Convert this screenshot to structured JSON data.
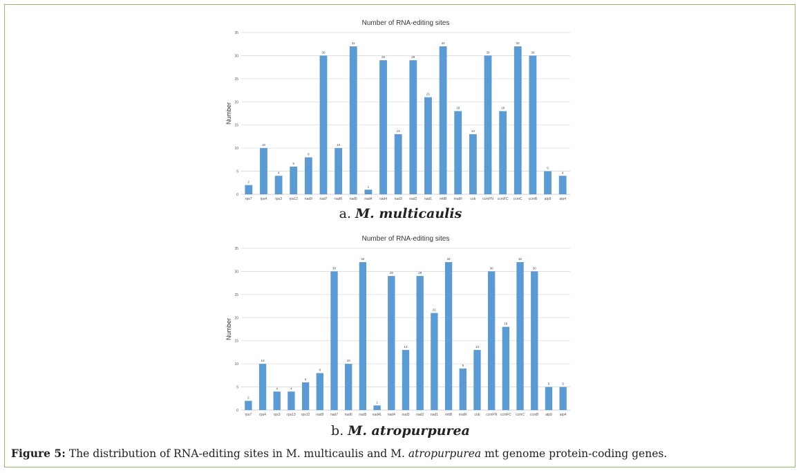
{
  "chart_data": [
    {
      "type": "bar",
      "title": "Number of RNA-editing sites",
      "xlabel": "",
      "ylabel": "Number",
      "ylim": [
        0,
        35
      ],
      "yticks": [
        0,
        5,
        10,
        15,
        20,
        25,
        30,
        35
      ],
      "grid": true,
      "color": "#5b9bd5",
      "categories": [
        "rps7",
        "rps4",
        "rps3",
        "rps12",
        "nad9",
        "nad7",
        "nad6",
        "nad5",
        "nad4",
        "nad4",
        "nad3",
        "nad2",
        "nad1",
        "mttB",
        "matR",
        "cob",
        "ccmFN",
        "ccmFC",
        "ccmC",
        "ccmB",
        "atp9",
        "atp4"
      ],
      "values": [
        2,
        10,
        4,
        6,
        8,
        30,
        10,
        32,
        1,
        29,
        13,
        29,
        21,
        32,
        18,
        13,
        30,
        18,
        32,
        30,
        5,
        4
      ]
    },
    {
      "type": "bar",
      "title": "Number of RNA-editing sites",
      "xlabel": "",
      "ylabel": "Number",
      "ylim": [
        0,
        35
      ],
      "yticks": [
        0,
        5,
        10,
        15,
        20,
        25,
        30,
        35
      ],
      "grid": true,
      "color": "#5b9bd5",
      "categories": [
        "rps7",
        "rps4",
        "rps3",
        "rps13",
        "rps12",
        "nad9",
        "nad7",
        "nad6",
        "nad5",
        "nad4L",
        "nad4",
        "nad3",
        "nad2",
        "nad1",
        "mttB",
        "matR",
        "cob",
        "ccmFN",
        "ccmFC",
        "ccmC",
        "ccmB",
        "atp9",
        "atp4"
      ],
      "values": [
        2,
        10,
        4,
        4,
        6,
        8,
        30,
        10,
        32,
        1,
        29,
        13,
        29,
        21,
        32,
        9,
        13,
        30,
        18,
        32,
        30,
        5,
        5
      ]
    }
  ],
  "subcaptions": [
    {
      "prefix": "a. ",
      "species": "M. multicaulis"
    },
    {
      "prefix": "b. ",
      "species": "M. atropurpurea"
    }
  ],
  "caption": {
    "label": "Figure 5:",
    "text_before": " The distribution of RNA-editing sites in M. multicaulis and M. ",
    "italic": "atropurpurea",
    "text_after": " mt genome protein-coding genes."
  }
}
